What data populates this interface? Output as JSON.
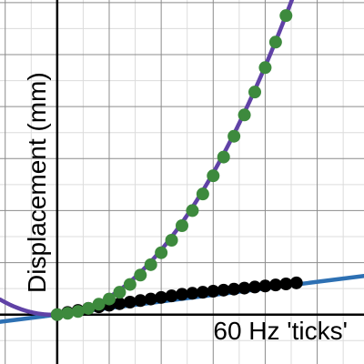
{
  "chart_data": {
    "type": "scatter",
    "title": "",
    "xlabel": "60 Hz 'ticks'",
    "ylabel": "Displacement (mm)",
    "xlim": [
      -1.1,
      5.9
    ],
    "ylim": [
      -0.95,
      6.05
    ],
    "grid": true,
    "major_grid_step": 1,
    "minor_grid_step": 0.5,
    "series": [
      {
        "kind": "points",
        "color": "#000000",
        "points": [
          [
            0,
            0
          ],
          [
            0.2,
            0.04
          ],
          [
            0.4,
            0.08
          ],
          [
            0.6,
            0.12
          ],
          [
            0.8,
            0.15
          ],
          [
            1.0,
            0.18
          ],
          [
            1.2,
            0.21
          ],
          [
            1.4,
            0.24
          ],
          [
            1.6,
            0.27
          ],
          [
            1.8,
            0.3
          ],
          [
            2.0,
            0.33
          ],
          [
            2.2,
            0.36
          ],
          [
            2.4,
            0.39
          ],
          [
            2.6,
            0.41
          ],
          [
            2.8,
            0.43
          ],
          [
            3.0,
            0.45
          ],
          [
            3.2,
            0.47
          ],
          [
            3.4,
            0.49
          ],
          [
            3.6,
            0.51
          ],
          [
            3.8,
            0.53
          ],
          [
            4.0,
            0.55
          ],
          [
            4.2,
            0.57
          ],
          [
            4.4,
            0.59
          ],
          [
            4.6,
            0.61
          ]
        ]
      },
      {
        "kind": "points",
        "color": "#3d8a3d",
        "points": [
          [
            0,
            0
          ],
          [
            0.2,
            0.025
          ],
          [
            0.4,
            0.06
          ],
          [
            0.6,
            0.12
          ],
          [
            0.8,
            0.2
          ],
          [
            1.0,
            0.3
          ],
          [
            1.2,
            0.43
          ],
          [
            1.4,
            0.58
          ],
          [
            1.6,
            0.76
          ],
          [
            1.8,
            0.96
          ],
          [
            2.0,
            1.19
          ],
          [
            2.2,
            1.43
          ],
          [
            2.4,
            1.71
          ],
          [
            2.6,
            2.0
          ],
          [
            2.8,
            2.32
          ],
          [
            3.0,
            2.67
          ],
          [
            3.2,
            3.03
          ],
          [
            3.4,
            3.43
          ],
          [
            3.6,
            3.84
          ],
          [
            3.8,
            4.28
          ],
          [
            4.0,
            4.75
          ],
          [
            4.2,
            5.24
          ],
          [
            4.4,
            5.75
          ]
        ]
      },
      {
        "kind": "line",
        "color": "#2d70b3",
        "fit": "linear",
        "slope": 0.126,
        "intercept": 0.0
      },
      {
        "kind": "line",
        "color": "#6042a6",
        "fit": "quadratic",
        "a": 0.286,
        "b": 0.05,
        "c": 0.0
      }
    ]
  }
}
